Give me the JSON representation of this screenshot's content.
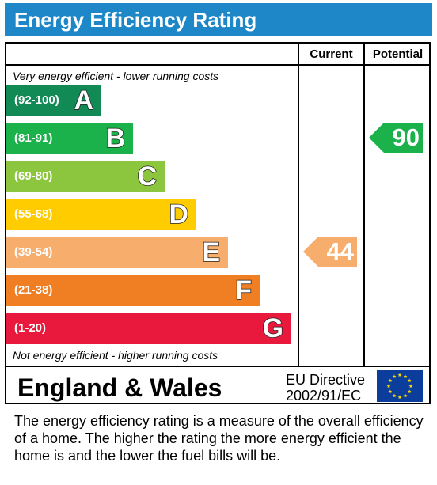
{
  "header": {
    "title": "Energy Efficiency Rating"
  },
  "columns": {
    "current": "Current",
    "potential": "Potential"
  },
  "notes": {
    "top": "Very energy efficient - lower running costs",
    "bottom": "Not energy efficient - higher running costs"
  },
  "bands": [
    {
      "range": "(92-100)",
      "letter": "A",
      "color": "#118a55"
    },
    {
      "range": "(81-91)",
      "letter": "B",
      "color": "#1bb24b"
    },
    {
      "range": "(69-80)",
      "letter": "C",
      "color": "#8cc63f"
    },
    {
      "range": "(55-68)",
      "letter": "D",
      "color": "#ffcc00"
    },
    {
      "range": "(39-54)",
      "letter": "E",
      "color": "#f7ad6b"
    },
    {
      "range": "(21-38)",
      "letter": "F",
      "color": "#f07f23"
    },
    {
      "range": "(1-20)",
      "letter": "G",
      "color": "#e8193c"
    }
  ],
  "ratings": {
    "current": {
      "value": "44",
      "band": "E",
      "color": "#f7ad6b"
    },
    "potential": {
      "value": "90",
      "band": "B",
      "color": "#1bb24b"
    }
  },
  "footer": {
    "region": "England & Wales",
    "directive_line1": "EU Directive",
    "directive_line2": "2002/91/EC",
    "flag_color": "#0b3d9c",
    "star_color": "#ffdd00"
  },
  "description": "The energy efficiency rating is a measure of the overall efficiency of a home.  The higher the rating the more energy efficient the home is and the lower the fuel bills will be.",
  "chart_data": {
    "type": "bar",
    "title": "Energy Efficiency Rating",
    "categories": [
      "A",
      "B",
      "C",
      "D",
      "E",
      "F",
      "G"
    ],
    "ranges": [
      "(92-100)",
      "(81-91)",
      "(69-80)",
      "(55-68)",
      "(39-54)",
      "(21-38)",
      "(1-20)"
    ],
    "series": [
      {
        "name": "Current",
        "values": [
          null,
          null,
          null,
          null,
          44,
          null,
          null
        ]
      },
      {
        "name": "Potential",
        "values": [
          null,
          90,
          null,
          null,
          null,
          null,
          null
        ]
      }
    ]
  }
}
